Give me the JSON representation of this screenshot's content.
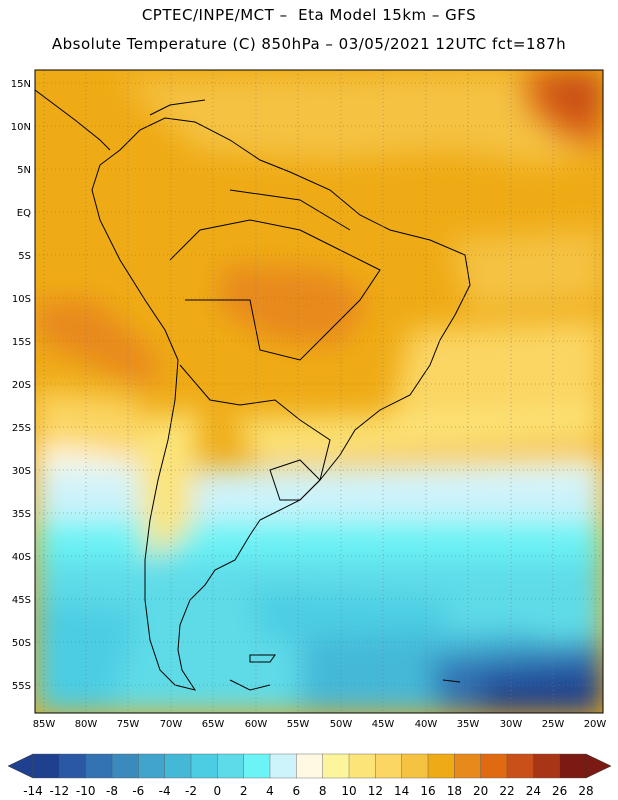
{
  "header": {
    "line1": "CPTEC/INPE/MCT –  Eta Model 15km – GFS",
    "line2": "Absolute Temperature (C) 850hPa – 03/05/2021 12UTC fct=187h"
  },
  "map": {
    "lat_labels": [
      "15N",
      "10N",
      "5N",
      "EQ",
      "5S",
      "10S",
      "15S",
      "20S",
      "25S",
      "30S",
      "35S",
      "40S",
      "45S",
      "50S",
      "55S"
    ],
    "lon_labels": [
      "85W",
      "80W",
      "75W",
      "70W",
      "65W",
      "60W",
      "55W",
      "50W",
      "45W",
      "40W",
      "35W",
      "30W",
      "25W",
      "20W"
    ]
  },
  "colorbar": {
    "labels": [
      "-14",
      "-12",
      "-10",
      "-8",
      "-6",
      "-4",
      "-2",
      "0",
      "2",
      "4",
      "6",
      "8",
      "10",
      "12",
      "14",
      "16",
      "18",
      "20",
      "22",
      "24",
      "26",
      "28"
    ],
    "colors": [
      "#1f3f8f",
      "#2a58a4",
      "#3372b3",
      "#3b8abd",
      "#41a4cd",
      "#45b8d8",
      "#4ccde3",
      "#5edbe8",
      "#6bf3f5",
      "#cdf3fb",
      "#fff8e3",
      "#fdf59b",
      "#fce479",
      "#fbd663",
      "#f5c242",
      "#efab16",
      "#e8891c",
      "#df6a12",
      "#c95019",
      "#a83516",
      "#7a1a12"
    ],
    "under_color": "#1f3f8f",
    "over_color": "#7a1a12"
  }
}
